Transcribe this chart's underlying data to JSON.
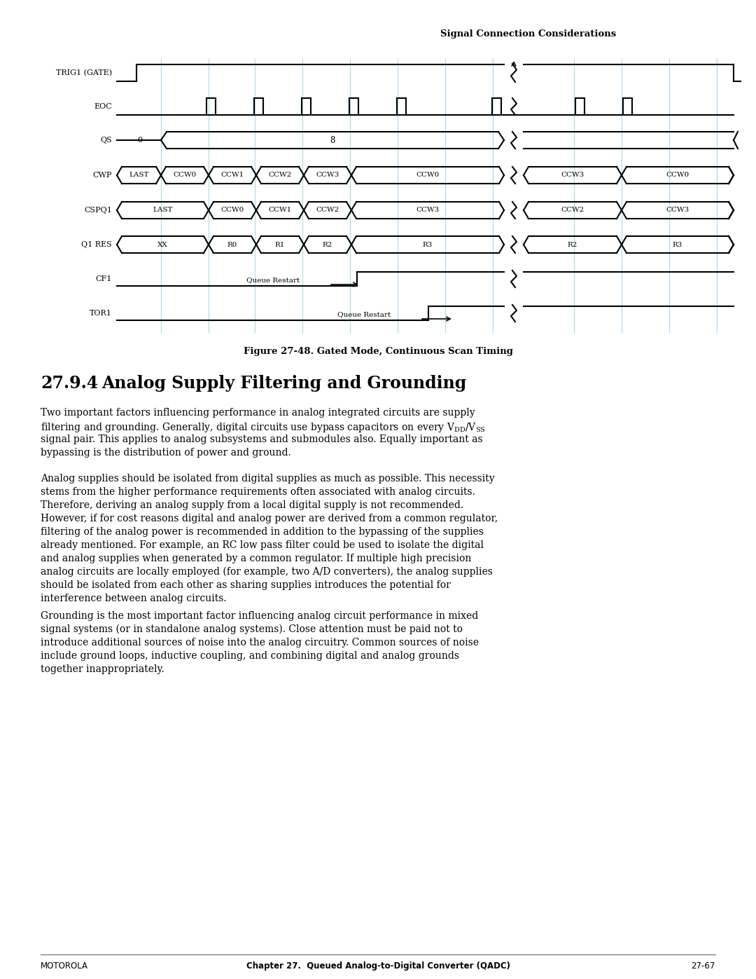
{
  "page_header": "Signal Connection Considerations",
  "figure_caption": "Figure 27-48. Gated Mode, Continuous Scan Timing",
  "section_number": "27.9.4",
  "section_title": "Analog Supply Filtering and Grounding",
  "footer_left": "MOTOROLA",
  "footer_center": "Chapter 27.  Queued Analog-to-Digital Converter (QADC)",
  "footer_right": "27-67",
  "bg_color": "#ffffff",
  "text_color": "#000000",
  "waveform_color": "#000000",
  "grid_color": "#add8e6"
}
